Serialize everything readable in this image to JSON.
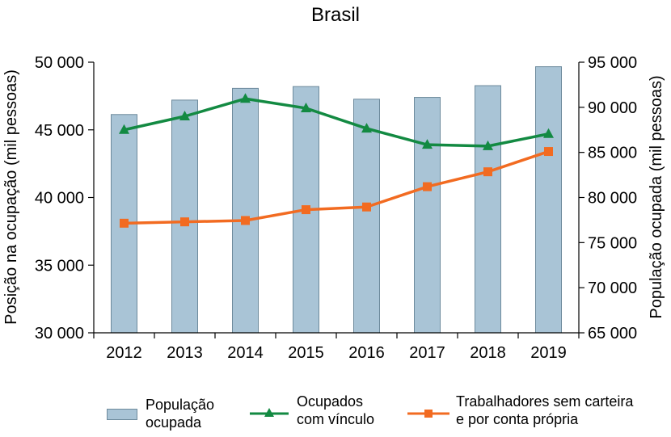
{
  "chart_data": {
    "type": "bar+line",
    "title": "Brasil",
    "categories": [
      "2012",
      "2013",
      "2014",
      "2015",
      "2016",
      "2017",
      "2018",
      "2019"
    ],
    "ylabel_left": "Posição na ocupação (mil pessoas)",
    "ylabel_right": "População ocupada (mil pessoas)",
    "ylim_left": [
      30000,
      50000
    ],
    "ylim_right": [
      65000,
      95000
    ],
    "yticks_left": [
      "30 000",
      "35 000",
      "40 000",
      "45 000",
      "50 000"
    ],
    "yticks_right": [
      "65 000",
      "70 000",
      "75 000",
      "80 000",
      "85 000",
      "90 000",
      "95 000"
    ],
    "series": [
      {
        "name": "População\nocupada",
        "kind": "bar",
        "axis": "right",
        "color": "#a9c4d6",
        "values": [
          89200,
          90800,
          92100,
          92300,
          90900,
          91100,
          92400,
          94500
        ]
      },
      {
        "name": "Ocupados\ncom vínculo",
        "kind": "line",
        "axis": "left",
        "marker": "triangle",
        "color": "#138a42",
        "values": [
          45000,
          46000,
          47300,
          46600,
          45100,
          43900,
          43800,
          44700
        ]
      },
      {
        "name": "Trabalhadores sem carteira\ne por conta própria",
        "kind": "line",
        "axis": "left",
        "marker": "square",
        "color": "#f26b21",
        "values": [
          38100,
          38200,
          38300,
          39100,
          39300,
          40800,
          41900,
          43400
        ]
      }
    ]
  }
}
